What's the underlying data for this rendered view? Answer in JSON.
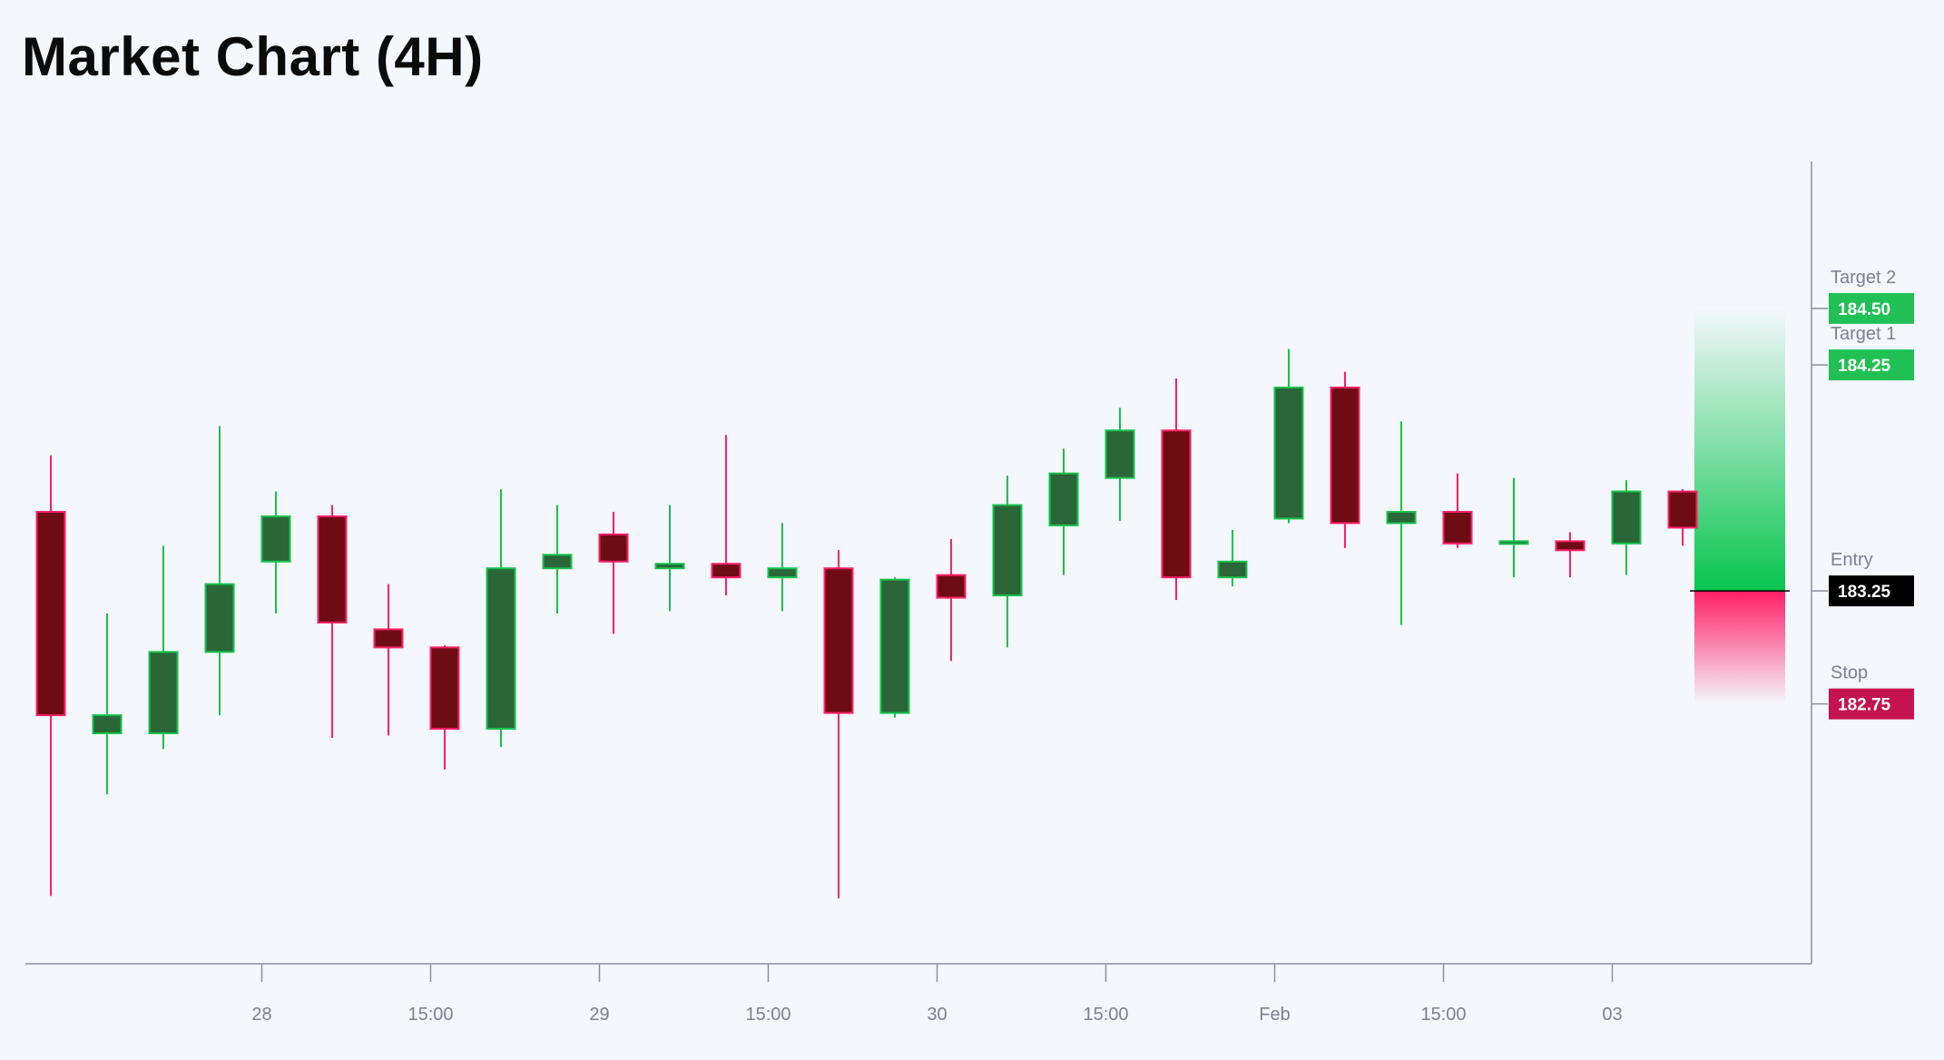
{
  "title": "Market Chart (4H)",
  "colors": {
    "up_body": "#2a6637",
    "up_wick": "#17c24c",
    "down_body": "#6e0c14",
    "down_wick": "#ff1f66",
    "target_badge": "#20c054",
    "entry_badge": "#000000",
    "stop_badge": "#c4134f",
    "reward_zone": "#08c54e",
    "risk_zone": "#ff1f66"
  },
  "chart_data": {
    "type": "candlestick",
    "y_range": [
      181.6,
      185.15
    ],
    "x_tick_labels": [
      "28",
      "15:00",
      "29",
      "15:00",
      "30",
      "15:00",
      "Feb",
      "15:00",
      "03"
    ],
    "x_tick_positions": [
      4.25,
      7.25,
      10.25,
      13.25,
      16.25,
      19.25,
      22.25,
      25.25,
      28.25
    ],
    "candles": [
      {
        "open": 183.6,
        "high": 183.85,
        "low": 181.9,
        "close": 182.7
      },
      {
        "open": 182.62,
        "high": 183.15,
        "low": 182.35,
        "close": 182.7
      },
      {
        "open": 182.62,
        "high": 183.45,
        "low": 182.55,
        "close": 182.98
      },
      {
        "open": 182.98,
        "high": 183.98,
        "low": 182.7,
        "close": 183.28
      },
      {
        "open": 183.38,
        "high": 183.69,
        "low": 183.15,
        "close": 183.58
      },
      {
        "open": 183.58,
        "high": 183.63,
        "low": 182.6,
        "close": 183.11
      },
      {
        "open": 183.08,
        "high": 183.28,
        "low": 182.61,
        "close": 183
      },
      {
        "open": 183,
        "high": 183.01,
        "low": 182.46,
        "close": 182.64
      },
      {
        "open": 182.64,
        "high": 183.7,
        "low": 182.56,
        "close": 183.35
      },
      {
        "open": 183.35,
        "high": 183.63,
        "low": 183.15,
        "close": 183.41
      },
      {
        "open": 183.5,
        "high": 183.6,
        "low": 183.06,
        "close": 183.38
      },
      {
        "open": 183.35,
        "high": 183.63,
        "low": 183.16,
        "close": 183.37
      },
      {
        "open": 183.37,
        "high": 183.94,
        "low": 183.23,
        "close": 183.31
      },
      {
        "open": 183.31,
        "high": 183.55,
        "low": 183.16,
        "close": 183.35
      },
      {
        "open": 183.35,
        "high": 183.43,
        "low": 181.89,
        "close": 182.71
      },
      {
        "open": 182.71,
        "high": 183.31,
        "low": 182.69,
        "close": 183.3
      },
      {
        "open": 183.32,
        "high": 183.48,
        "low": 182.94,
        "close": 183.22
      },
      {
        "open": 183.23,
        "high": 183.76,
        "low": 183.0,
        "close": 183.63
      },
      {
        "open": 183.54,
        "high": 183.88,
        "low": 183.32,
        "close": 183.77
      },
      {
        "open": 183.75,
        "high": 184.06,
        "low": 183.56,
        "close": 183.96
      },
      {
        "open": 183.96,
        "high": 184.19,
        "low": 183.21,
        "close": 183.31
      },
      {
        "open": 183.31,
        "high": 183.52,
        "low": 183.27,
        "close": 183.38
      },
      {
        "open": 183.57,
        "high": 184.32,
        "low": 183.55,
        "close": 184.15
      },
      {
        "open": 184.15,
        "high": 184.22,
        "low": 183.44,
        "close": 183.55
      },
      {
        "open": 183.55,
        "high": 184.0,
        "low": 183.1,
        "close": 183.6
      },
      {
        "open": 183.6,
        "high": 183.77,
        "low": 183.44,
        "close": 183.46
      },
      {
        "open": 183.46,
        "high": 183.75,
        "low": 183.31,
        "close": 183.47
      },
      {
        "open": 183.47,
        "high": 183.51,
        "low": 183.31,
        "close": 183.43
      },
      {
        "open": 183.46,
        "high": 183.74,
        "low": 183.32,
        "close": 183.69
      },
      {
        "open": 183.69,
        "high": 183.7,
        "low": 183.45,
        "close": 183.53
      }
    ],
    "levels": [
      {
        "name": "Target 2",
        "value": 184.5,
        "value_label": "184.50",
        "kind": "target"
      },
      {
        "name": "Target 1",
        "value": 184.25,
        "value_label": "184.25",
        "kind": "target"
      },
      {
        "name": "Entry",
        "value": 183.25,
        "value_label": "183.25",
        "kind": "entry"
      },
      {
        "name": "Stop",
        "value": 182.75,
        "value_label": "182.75",
        "kind": "stop"
      }
    ],
    "reward_zone": [
      183.25,
      184.5
    ],
    "risk_zone": [
      182.75,
      183.25
    ],
    "grid": false
  }
}
